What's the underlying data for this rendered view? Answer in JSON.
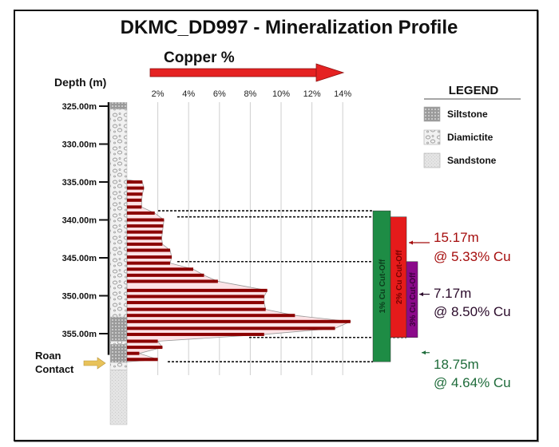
{
  "chart_data": {
    "type": "bar",
    "orientation": "horizontal",
    "title": "DKMC_DD997 - Mineralization Profile",
    "xlabel": "Copper %",
    "ylabel": "Depth (m)",
    "xlim": [
      0,
      14
    ],
    "ylim": [
      325,
      357
    ],
    "x_ticks": [
      "2%",
      "4%",
      "6%",
      "8%",
      "10%",
      "12%",
      "14%"
    ],
    "x_tick_values": [
      2,
      4,
      6,
      8,
      10,
      12,
      14
    ],
    "y_ticks": [
      "325.00m",
      "330.00m",
      "335.00m",
      "340.00m",
      "345.00m",
      "350.00m",
      "355.00m"
    ],
    "y_tick_values": [
      325,
      330,
      335,
      340,
      345,
      350,
      355
    ],
    "grid": true,
    "bar_color": "#8b0000",
    "fill_color": "#fde3e6",
    "series": [
      {
        "name": "Cu %",
        "depths": [
          335.0,
          335.8,
          336.6,
          337.4,
          338.3,
          339.1,
          340.0,
          340.8,
          341.6,
          342.4,
          343.2,
          344.0,
          344.9,
          345.7,
          346.5,
          347.3,
          348.1,
          349.3,
          350.1,
          350.9,
          351.8,
          352.6,
          353.4,
          354.3,
          355.1,
          356.0,
          356.8,
          357.6,
          358.4
        ],
        "values": [
          1.0,
          1.1,
          1.0,
          0.95,
          0.95,
          1.8,
          2.4,
          2.35,
          2.3,
          2.25,
          2.3,
          2.8,
          2.9,
          2.8,
          4.3,
          5.0,
          5.9,
          9.1,
          8.9,
          8.9,
          9.0,
          10.9,
          14.5,
          13.5,
          8.9,
          2.0,
          2.3,
          0.8,
          2.0
        ]
      }
    ],
    "lithology": [
      {
        "unit": "Siltstone",
        "from": 324.5,
        "to": 325.4
      },
      {
        "unit": "Diamictite",
        "from": 325.4,
        "to": 352.8
      },
      {
        "unit": "Siltstone",
        "from": 352.8,
        "to": 356.0
      },
      {
        "unit": "Diamictite",
        "from": 356.0,
        "to": 356.4
      },
      {
        "unit": "Siltstone",
        "from": 356.4,
        "to": 358.8
      },
      {
        "unit": "Diamictite",
        "from": 358.8,
        "to": 359.8
      },
      {
        "unit": "Sandstone",
        "from": 359.8,
        "to": 367.0
      }
    ],
    "intercepts": [
      {
        "label": "1% Cu Cut-Off",
        "from": 338.8,
        "to": 358.7,
        "color": "#1e8c45",
        "text_color": "#0b3d1c",
        "length": "18.75m",
        "grade": "@ 4.64% Cu",
        "annot_color": "#1e6b3a"
      },
      {
        "label": "2% Cu Cut-Off",
        "from": 339.6,
        "to": 355.5,
        "color": "#e51b1b",
        "text_color": "#7a0000",
        "length": "15.17m",
        "grade": "@ 5.33% Cu",
        "annot_color": "#a50d0d"
      },
      {
        "label": "3% Cu Cut-Off",
        "from": 345.5,
        "to": 355.5,
        "color": "#8b0a8a",
        "text_color": "#3d003d",
        "length": "7.17m",
        "grade": "@ 8.50% Cu",
        "annot_color": "#2a0a2a"
      }
    ],
    "legend": {
      "title": "LEGEND",
      "position": "top-right",
      "items": [
        {
          "label": "Siltstone",
          "pattern": "siltstone"
        },
        {
          "label": "Diamictite",
          "pattern": "diamictite"
        },
        {
          "label": "Sandstone",
          "pattern": "sandstone"
        }
      ]
    },
    "annotations": [
      {
        "text": "Roan Contact",
        "arrow_color": "#e8c25a"
      }
    ]
  }
}
